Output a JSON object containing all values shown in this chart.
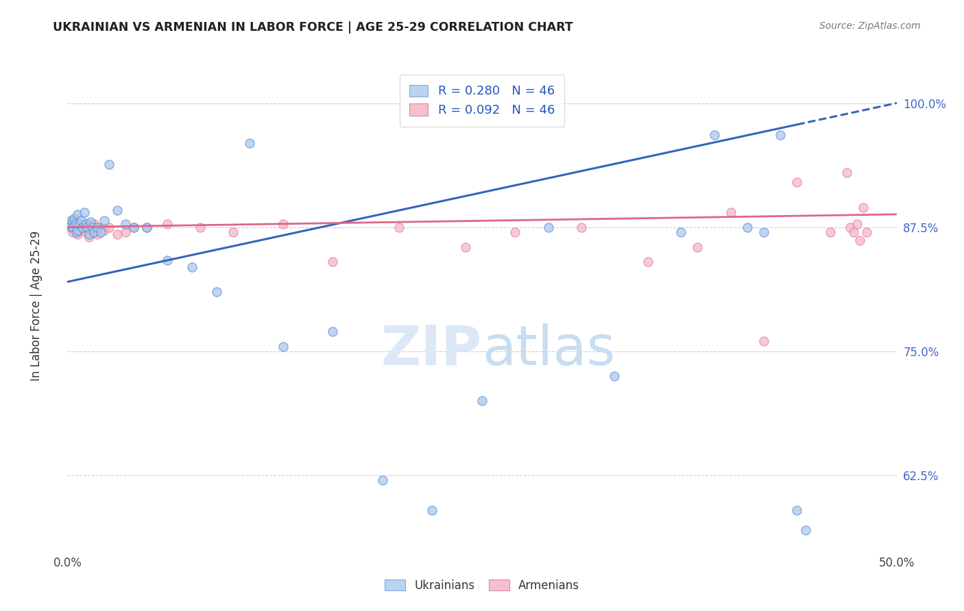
{
  "title": "UKRAINIAN VS ARMENIAN IN LABOR FORCE | AGE 25-29 CORRELATION CHART",
  "source": "Source: ZipAtlas.com",
  "ylabel": "In Labor Force | Age 25-29",
  "xlim": [
    0.0,
    0.5
  ],
  "ylim": [
    0.55,
    1.03
  ],
  "ytick_positions": [
    0.625,
    0.75,
    0.875,
    1.0
  ],
  "ytick_labels": [
    "62.5%",
    "75.0%",
    "87.5%",
    "100.0%"
  ],
  "xtick_positions": [
    0.0,
    0.1,
    0.2,
    0.3,
    0.4,
    0.5
  ],
  "xtick_labels": [
    "0.0%",
    "",
    "",
    "",
    "",
    "50.0%"
  ],
  "blue_face_color": "#aac8ee",
  "blue_edge_color": "#5588cc",
  "pink_face_color": "#f5b8c8",
  "pink_edge_color": "#e07898",
  "blue_line_color": "#3366bb",
  "pink_line_color": "#dd6688",
  "ytick_color": "#4466cc",
  "grid_color": "#cccccc",
  "watermark_color": "#dce8f5",
  "ukrainians_x": [
    0.001,
    0.002,
    0.002,
    0.003,
    0.003,
    0.004,
    0.005,
    0.005,
    0.006,
    0.006,
    0.007,
    0.008,
    0.009,
    0.01,
    0.011,
    0.012,
    0.013,
    0.014,
    0.015,
    0.016,
    0.018,
    0.02,
    0.022,
    0.025,
    0.03,
    0.035,
    0.04,
    0.048,
    0.06,
    0.075,
    0.09,
    0.11,
    0.13,
    0.16,
    0.19,
    0.22,
    0.25,
    0.29,
    0.33,
    0.37,
    0.39,
    0.41,
    0.42,
    0.43,
    0.44,
    0.445
  ],
  "ukrainians_y": [
    0.878,
    0.882,
    0.876,
    0.88,
    0.875,
    0.884,
    0.879,
    0.87,
    0.888,
    0.872,
    0.878,
    0.882,
    0.875,
    0.89,
    0.878,
    0.875,
    0.868,
    0.88,
    0.875,
    0.87,
    0.875,
    0.87,
    0.882,
    0.938,
    0.892,
    0.878,
    0.875,
    0.875,
    0.842,
    0.835,
    0.81,
    0.96,
    0.755,
    0.77,
    0.62,
    0.59,
    0.7,
    0.875,
    0.725,
    0.87,
    0.968,
    0.875,
    0.87,
    0.968,
    0.59,
    0.57
  ],
  "armenians_x": [
    0.001,
    0.002,
    0.003,
    0.004,
    0.005,
    0.006,
    0.007,
    0.008,
    0.009,
    0.01,
    0.011,
    0.012,
    0.013,
    0.014,
    0.015,
    0.016,
    0.018,
    0.02,
    0.022,
    0.025,
    0.03,
    0.035,
    0.04,
    0.048,
    0.06,
    0.08,
    0.1,
    0.13,
    0.16,
    0.2,
    0.24,
    0.27,
    0.31,
    0.35,
    0.38,
    0.4,
    0.42,
    0.44,
    0.46,
    0.47,
    0.472,
    0.474,
    0.476,
    0.478,
    0.48,
    0.482
  ],
  "armenians_y": [
    0.878,
    0.875,
    0.87,
    0.882,
    0.875,
    0.868,
    0.875,
    0.872,
    0.878,
    0.875,
    0.87,
    0.878,
    0.865,
    0.875,
    0.87,
    0.878,
    0.868,
    0.875,
    0.872,
    0.875,
    0.868,
    0.87,
    0.875,
    0.875,
    0.878,
    0.875,
    0.87,
    0.878,
    0.84,
    0.875,
    0.855,
    0.87,
    0.875,
    0.84,
    0.855,
    0.89,
    0.76,
    0.92,
    0.87,
    0.93,
    0.875,
    0.87,
    0.878,
    0.862,
    0.895,
    0.87
  ]
}
